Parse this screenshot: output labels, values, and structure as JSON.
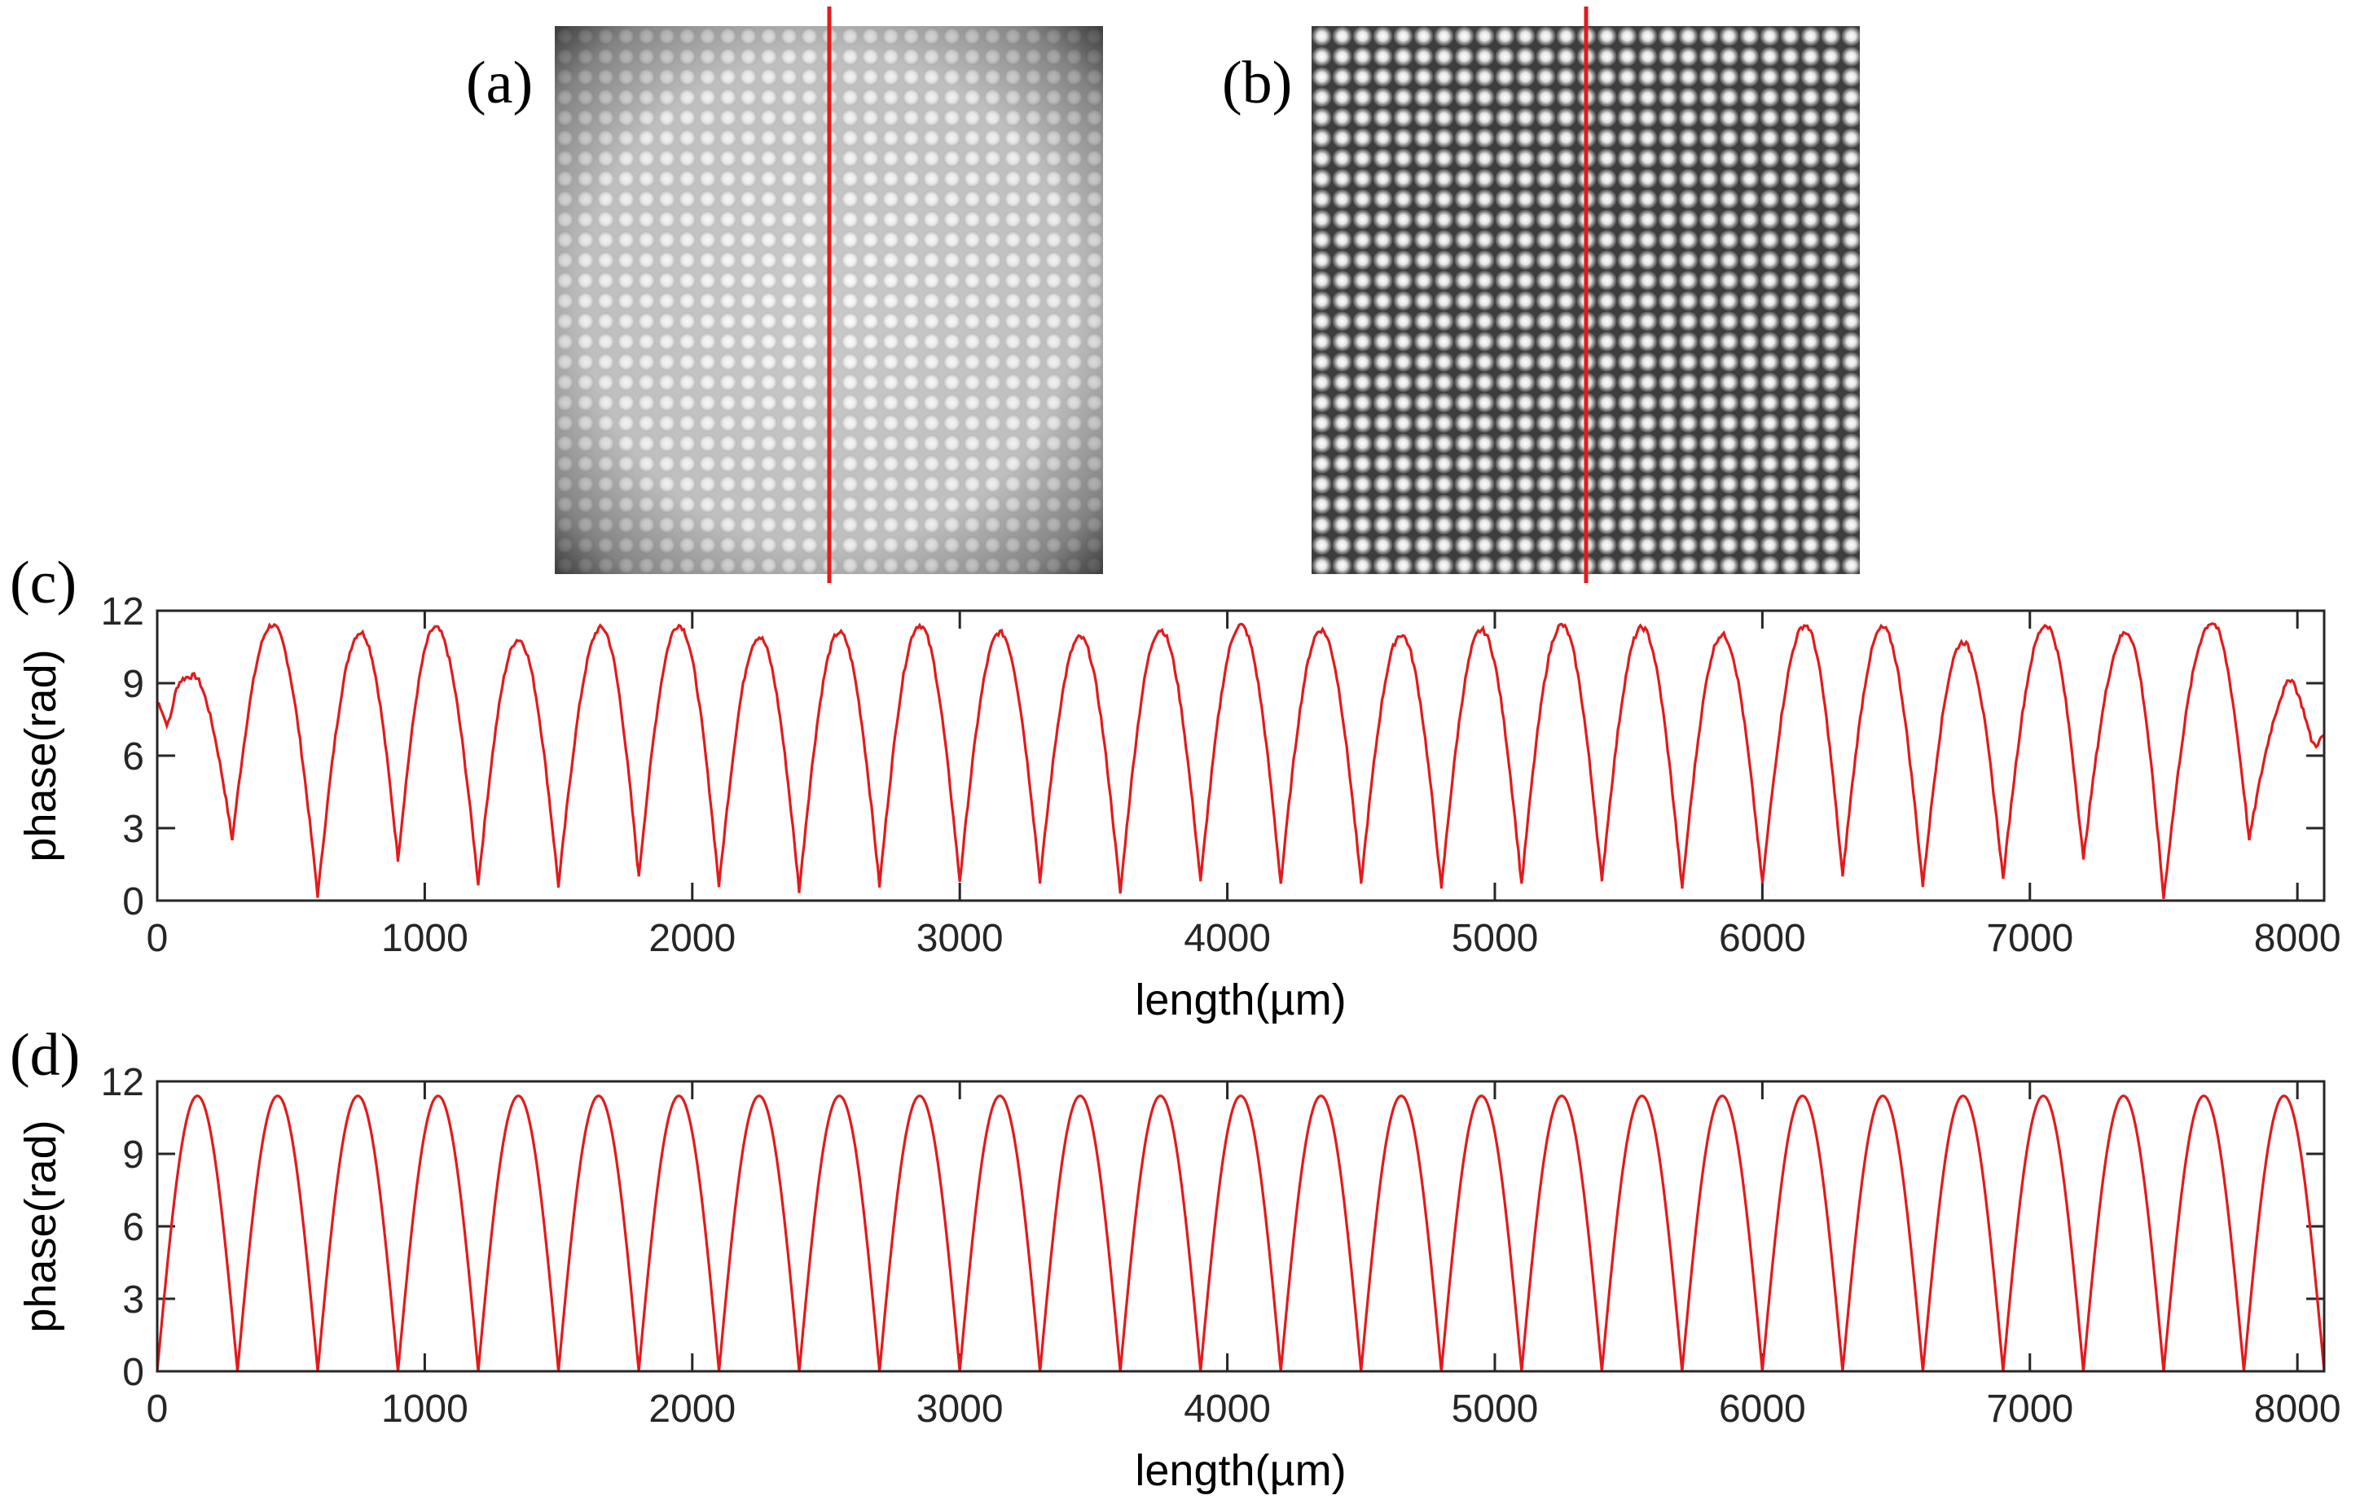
{
  "panels": {
    "a_label": "(a)",
    "b_label": "(b)",
    "c_label": "(c)",
    "d_label": "(d)"
  },
  "colors": {
    "curve": "#e31a1c",
    "axis": "#262626",
    "image_a_bg": "#8c8c8c",
    "image_b_bg": "#5a5a5a"
  },
  "images": {
    "a": {
      "pattern": "grid of bright spots with dark vignette edges",
      "grid_count": 27,
      "marker_line_color": "#e31a1c"
    },
    "b": {
      "pattern": "uniform checkerboard of bright spots",
      "grid_count": 27,
      "marker_line_color": "#e31a1c"
    }
  },
  "chart_data": [
    {
      "panel": "(c)",
      "type": "line",
      "xlabel": "length(µm)",
      "ylabel": "phase(rad)",
      "xlim": [
        0,
        8100
      ],
      "ylim": [
        0,
        12
      ],
      "xticks": [
        0,
        1000,
        2000,
        3000,
        4000,
        5000,
        6000,
        7000,
        8000
      ],
      "yticks": [
        0,
        3,
        6,
        9,
        12
      ],
      "grid": false,
      "series": [
        {
          "color": "#e31a1c",
          "period": 300,
          "minima_x": [
            280,
            600,
            900,
            1200,
            1500,
            1800,
            2100,
            2400,
            2700,
            3000,
            3300,
            3600,
            3900,
            4200,
            4500,
            4800,
            5100,
            5400,
            5700,
            6000,
            6300,
            6600,
            6900,
            7200,
            7500,
            7820
          ],
          "minima_y": [
            2.5,
            0.2,
            1.7,
            0.7,
            0.6,
            1.0,
            0.6,
            0.4,
            0.6,
            0.8,
            0.8,
            0.3,
            0.8,
            0.7,
            0.7,
            0.5,
            0.7,
            0.8,
            0.5,
            0.7,
            1.0,
            0.6,
            0.9,
            1.7,
            0.1,
            2.5
          ],
          "peaks_x": [
            140,
            430,
            760,
            1040,
            1350,
            1660,
            1950,
            2250,
            2550,
            2850,
            3150,
            3450,
            3750,
            4050,
            4350,
            4650,
            4950,
            5250,
            5550,
            5850,
            6160,
            6450,
            6750,
            7060,
            7360,
            7680,
            7980
          ],
          "peaks_y": [
            9.3,
            11.4,
            11.1,
            11.3,
            10.8,
            11.3,
            11.4,
            10.9,
            11.1,
            11.4,
            11.1,
            10.9,
            11.2,
            11.4,
            11.2,
            11.0,
            11.2,
            11.4,
            11.3,
            11.0,
            11.4,
            11.3,
            10.7,
            11.4,
            11.1,
            11.5,
            9.2
          ],
          "start_y": 8.3,
          "end_y": 7.0
        }
      ]
    },
    {
      "panel": "(d)",
      "type": "line",
      "xlabel": "length(µm)",
      "ylabel": "phase(rad)",
      "xlim": [
        0,
        8100
      ],
      "ylim": [
        0,
        12
      ],
      "xticks": [
        0,
        1000,
        2000,
        3000,
        4000,
        5000,
        6000,
        7000,
        8000
      ],
      "yticks": [
        0,
        3,
        6,
        9,
        12
      ],
      "grid": false,
      "series": [
        {
          "color": "#e31a1c",
          "period": 300,
          "amplitude": 11.4,
          "minima_x": [
            0,
            300,
            600,
            900,
            1200,
            1500,
            1800,
            2100,
            2400,
            2700,
            3000,
            3300,
            3600,
            3900,
            4200,
            4500,
            4800,
            5100,
            5400,
            5700,
            6000,
            6300,
            6600,
            6900,
            7200,
            7500,
            7800,
            8100
          ]
        }
      ]
    }
  ]
}
